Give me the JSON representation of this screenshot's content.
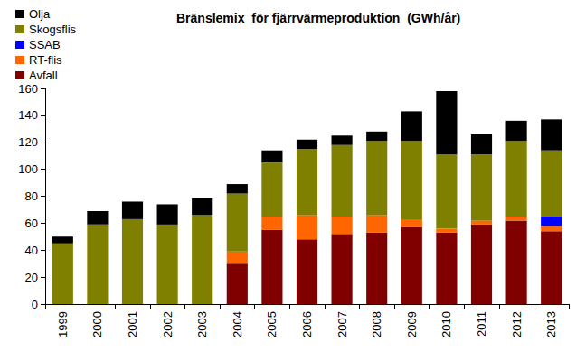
{
  "chart_data": {
    "type": "bar",
    "title": "Bränslemix  för fjärrvärmeproduktion  (GWh/år)",
    "categories": [
      "1999",
      "2000",
      "2001",
      "2002",
      "2003",
      "2004",
      "2005",
      "2006",
      "2007",
      "2008",
      "2009",
      "2010",
      "2011",
      "2012",
      "2013"
    ],
    "series": [
      {
        "name": "Avfall",
        "color": "#800000",
        "values": [
          0,
          0,
          0,
          0,
          0,
          30,
          55,
          48,
          52,
          53,
          57,
          53,
          59,
          62,
          54
        ]
      },
      {
        "name": "RT-flis",
        "color": "#ff6600",
        "values": [
          0,
          0,
          0,
          0,
          0,
          9,
          10,
          18,
          13,
          13,
          6,
          3,
          3,
          3,
          4
        ]
      },
      {
        "name": "SSAB",
        "color": "#0000ff",
        "values": [
          0,
          0,
          0,
          0,
          0,
          0,
          0,
          0,
          0,
          0,
          0,
          0,
          0,
          0,
          7
        ]
      },
      {
        "name": "Skogsflis",
        "color": "#808000",
        "values": [
          45,
          59,
          63,
          59,
          66,
          43,
          40,
          49,
          53,
          55,
          58,
          55,
          49,
          56,
          49
        ]
      },
      {
        "name": "Olja",
        "color": "#000000",
        "values": [
          5,
          10,
          13,
          15,
          13,
          7,
          9,
          7,
          7,
          7,
          22,
          47,
          15,
          15,
          23
        ]
      }
    ],
    "ylim": [
      0,
      160
    ],
    "yticks": [
      0,
      20,
      40,
      60,
      80,
      100,
      120,
      140,
      160
    ],
    "stacked": true,
    "grid": false,
    "legend": "top-left"
  }
}
